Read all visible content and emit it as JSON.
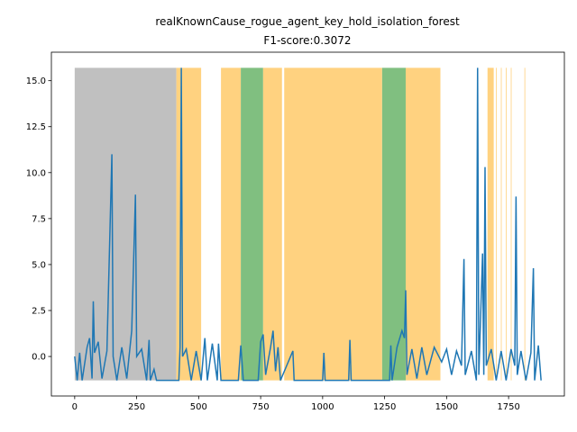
{
  "chart_data": {
    "type": "line",
    "title": "realKnownCause_rogue_agent_key_hold_isolation_forest",
    "subtitle": "F1-score:0.3072",
    "xlim": [
      -94,
      1975
    ],
    "ylim": [
      -2.15,
      16.55
    ],
    "xticks": [
      0,
      250,
      500,
      750,
      1000,
      1250,
      1500,
      1750
    ],
    "yticks": [
      {
        "value": 0,
        "label": "0.0"
      },
      {
        "value": 2.5,
        "label": "2.5"
      },
      {
        "value": 5,
        "label": "5.0"
      },
      {
        "value": 7.5,
        "label": "7.5"
      },
      {
        "value": 10,
        "label": "10.0"
      },
      {
        "value": 12.5,
        "label": "12.5"
      },
      {
        "value": 15,
        "label": "15.0"
      }
    ],
    "spans": [
      {
        "start": 0,
        "end": 410,
        "color": "#c0c0c0"
      },
      {
        "start": 410,
        "end": 510,
        "color": "#ffd280"
      },
      {
        "start": 590,
        "end": 670,
        "color": "#ffd280"
      },
      {
        "start": 670,
        "end": 760,
        "color": "#80bf80"
      },
      {
        "start": 760,
        "end": 836,
        "color": "#ffd280"
      },
      {
        "start": 845,
        "end": 1240,
        "color": "#ffd280"
      },
      {
        "start": 1240,
        "end": 1335,
        "color": "#80bf80"
      },
      {
        "start": 1335,
        "end": 1475,
        "color": "#ffd280"
      },
      {
        "start": 1665,
        "end": 1690,
        "color": "#ffd280"
      },
      {
        "start": 1699,
        "end": 1702,
        "color": "#ffd280"
      },
      {
        "start": 1719,
        "end": 1722,
        "color": "#ffd280"
      },
      {
        "start": 1739,
        "end": 1742,
        "color": "#ffd280"
      },
      {
        "start": 1759,
        "end": 1762,
        "color": "#ffd280"
      },
      {
        "start": 1814,
        "end": 1817,
        "color": "#ffd280"
      }
    ],
    "series": [
      {
        "color": "#1f77b4",
        "x": [
          0,
          10,
          20,
          30,
          50,
          60,
          70,
          75,
          80,
          95,
          110,
          130,
          150,
          155,
          170,
          190,
          210,
          230,
          245,
          250,
          270,
          290,
          300,
          305,
          320,
          330,
          420,
          425,
          430,
          435,
          450,
          470,
          490,
          510,
          525,
          535,
          555,
          575,
          580,
          590,
          660,
          670,
          680,
          740,
          750,
          760,
          770,
          790,
          800,
          810,
          820,
          830,
          880,
          885,
          1000,
          1005,
          1010,
          1105,
          1110,
          1115,
          1270,
          1275,
          1280,
          1300,
          1320,
          1330,
          1335,
          1340,
          1360,
          1380,
          1400,
          1420,
          1450,
          1480,
          1500,
          1520,
          1540,
          1560,
          1570,
          1575,
          1600,
          1620,
          1625,
          1630,
          1645,
          1650,
          1655,
          1660,
          1680,
          1700,
          1720,
          1740,
          1760,
          1775,
          1780,
          1785,
          1800,
          1820,
          1840,
          1850,
          1855,
          1870,
          1881
        ],
        "values": [
          0,
          -1.3,
          0.2,
          -1.3,
          0.5,
          1.0,
          -1.2,
          3.0,
          0.2,
          0.8,
          -1.2,
          0.3,
          11.0,
          0,
          -1.3,
          0.5,
          -1.2,
          1.4,
          8.8,
          0,
          0.4,
          -1.3,
          0.9,
          -1.3,
          -0.7,
          -1.3,
          -1.3,
          0.5,
          15.7,
          0,
          0.4,
          -1.3,
          0.3,
          -1.3,
          1.0,
          -1.3,
          0.7,
          -1.3,
          0.7,
          -1.3,
          -1.3,
          0.6,
          -1.3,
          -1.3,
          0.8,
          1.2,
          -1.0,
          0.5,
          1.4,
          -0.8,
          0.5,
          -1.3,
          0.3,
          -1.3,
          -1.3,
          0.2,
          -1.3,
          -1.3,
          0.9,
          -1.3,
          -1.3,
          0.6,
          -1.3,
          0.5,
          1.4,
          1.0,
          3.6,
          -1.0,
          0.4,
          -1.2,
          0.5,
          -1.0,
          0.5,
          -0.3,
          0.4,
          -1.0,
          0.3,
          -0.5,
          5.3,
          -1.0,
          0.3,
          -1.3,
          15.7,
          -1.0,
          5.6,
          -1.0,
          10.3,
          -0.5,
          0.4,
          -1.3,
          0.3,
          -1.3,
          0.4,
          -0.5,
          8.7,
          -1.0,
          0.3,
          -1.3,
          0.2,
          4.8,
          -1.3,
          0.6,
          -1.3
        ]
      }
    ]
  }
}
